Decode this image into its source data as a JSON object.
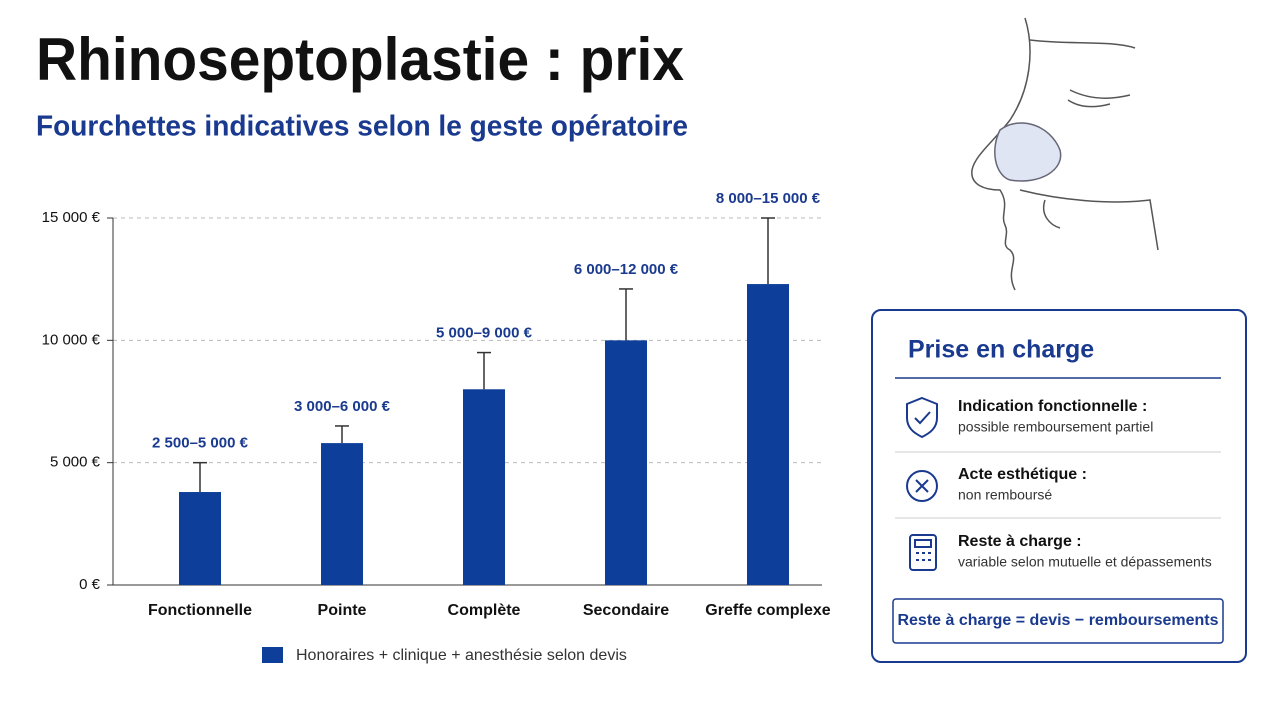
{
  "title": "Rhinoseptoplastie : prix",
  "subtitle": "Fourchettes indicatives selon le geste opératoire",
  "chart_data": {
    "type": "bar",
    "categories": [
      "Fonctionnelle",
      "Pointe",
      "Complète",
      "Secondaire",
      "Greffe complexe"
    ],
    "series": [
      {
        "name": "Honoraires + clinique + anesthésie selon devis",
        "color": "#0d3f9a",
        "values": [
          3800,
          5800,
          8000,
          10000,
          12300
        ],
        "errors": [
          1200,
          700,
          1500,
          2100,
          2700
        ]
      }
    ],
    "range_labels": [
      "2 500–5 000 €",
      "3 000–6 000 €",
      "5 000–9 000 €",
      "6 000–12 000 €",
      "8 000–15 000 €"
    ],
    "ylim": [
      0,
      15000
    ],
    "yticks": [
      {
        "value": 0,
        "label": "0 €"
      },
      {
        "value": 5000,
        "label": "5 000 €"
      },
      {
        "value": 10000,
        "label": "10 000 €"
      },
      {
        "value": 15000,
        "label": "15 000 €"
      }
    ],
    "grid": true
  },
  "panel": {
    "title": "Prise en charge",
    "items": [
      {
        "title": "Indication fonctionnelle :",
        "text": "possible remboursement partiel"
      },
      {
        "title": "Acte esthétique :",
        "text": "non remboursé"
      },
      {
        "title": "Reste à charge :",
        "text": "variable selon mutuelle et dépassements"
      }
    ],
    "formula": "Reste à charge = devis − remboursements"
  }
}
